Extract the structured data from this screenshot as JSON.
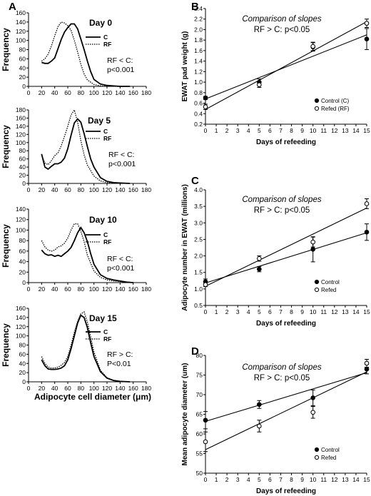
{
  "figure": {
    "x_axis_title_left": "Adipocyte cell diameter (μm)",
    "legend": {
      "c": "C",
      "rf": "RF"
    },
    "colors": {
      "line": "#000000",
      "background": "#ffffff"
    }
  },
  "chart_data": [
    {
      "panel": "A",
      "type": "line",
      "title": "Day 0",
      "ylabel": "Frequency",
      "xlim": [
        0,
        180
      ],
      "ylim": [
        0,
        160
      ],
      "xticks": [
        "0",
        "20",
        "40",
        "60",
        "80",
        "100",
        "120",
        "140",
        "160",
        "180"
      ],
      "yticks": [
        "0",
        "20",
        "40",
        "60",
        "80",
        "100",
        "120",
        "140",
        "160"
      ],
      "annotation": [
        "RF < C:",
        "p<0.001"
      ],
      "series": [
        {
          "name": "C",
          "style": "solid",
          "x": [
            20,
            25,
            30,
            35,
            40,
            45,
            50,
            55,
            60,
            65,
            70,
            75,
            80,
            85,
            90,
            95,
            100,
            110,
            120,
            130,
            140,
            155
          ],
          "y": [
            52,
            50,
            50,
            55,
            62,
            82,
            102,
            118,
            128,
            136,
            136,
            125,
            103,
            80,
            55,
            32,
            15,
            5,
            2,
            1,
            0,
            0
          ]
        },
        {
          "name": "RF",
          "style": "dotted",
          "x": [
            20,
            25,
            30,
            35,
            40,
            45,
            50,
            55,
            60,
            65,
            70,
            75,
            80,
            85,
            90,
            100,
            110,
            120,
            130,
            140,
            155
          ],
          "y": [
            55,
            60,
            70,
            88,
            110,
            130,
            140,
            138,
            132,
            122,
            100,
            75,
            48,
            27,
            14,
            4,
            1,
            0,
            0,
            0,
            0
          ]
        }
      ]
    },
    {
      "panel": "A2",
      "type": "line",
      "title": "Day 5",
      "ylabel": "Frequency",
      "xlim": [
        0,
        180
      ],
      "ylim": [
        0,
        180
      ],
      "xticks": [
        "0",
        "20",
        "40",
        "60",
        "80",
        "100",
        "120",
        "140",
        "160",
        "180"
      ],
      "yticks": [
        "0",
        "20",
        "40",
        "60",
        "80",
        "100",
        "120",
        "140",
        "160",
        "180"
      ],
      "annotation": [
        "RF < C:",
        "p<0.001"
      ],
      "series": [
        {
          "name": "C",
          "style": "solid",
          "x": [
            20,
            25,
            30,
            35,
            40,
            45,
            50,
            55,
            60,
            65,
            70,
            75,
            80,
            85,
            90,
            95,
            100,
            110,
            120,
            130,
            140,
            155
          ],
          "y": [
            72,
            40,
            35,
            42,
            48,
            48,
            52,
            62,
            85,
            118,
            148,
            158,
            150,
            122,
            90,
            60,
            40,
            14,
            5,
            2,
            1,
            0
          ]
        },
        {
          "name": "RF",
          "style": "dotted",
          "x": [
            20,
            25,
            30,
            35,
            40,
            45,
            50,
            55,
            60,
            65,
            70,
            75,
            80,
            85,
            90,
            100,
            110,
            120,
            130,
            140,
            155
          ],
          "y": [
            70,
            50,
            46,
            56,
            68,
            75,
            92,
            115,
            140,
            168,
            180,
            150,
            105,
            70,
            45,
            18,
            6,
            2,
            1,
            0,
            0
          ]
        }
      ]
    },
    {
      "panel": "A3",
      "type": "line",
      "title": "Day 10",
      "ylabel": "Frequency",
      "xlim": [
        0,
        180
      ],
      "ylim": [
        0,
        140
      ],
      "xticks": [
        "0",
        "20",
        "40",
        "60",
        "80",
        "100",
        "120",
        "140",
        "160",
        "180"
      ],
      "yticks": [
        "0",
        "20",
        "40",
        "60",
        "80",
        "100",
        "120",
        "140"
      ],
      "annotation": [
        "RF < C:",
        "p<0.001"
      ],
      "series": [
        {
          "name": "C",
          "style": "solid",
          "x": [
            20,
            25,
            30,
            35,
            40,
            45,
            50,
            55,
            60,
            65,
            70,
            75,
            80,
            85,
            90,
            95,
            100,
            110,
            120,
            130,
            140,
            150,
            160
          ],
          "y": [
            62,
            55,
            52,
            53,
            50,
            52,
            50,
            55,
            60,
            67,
            80,
            95,
            105,
            95,
            78,
            55,
            35,
            15,
            8,
            5,
            3,
            1,
            0
          ]
        },
        {
          "name": "RF",
          "style": "dotted",
          "x": [
            20,
            25,
            30,
            35,
            40,
            45,
            50,
            55,
            60,
            65,
            70,
            75,
            80,
            85,
            90,
            100,
            110,
            120,
            130,
            140,
            150,
            160
          ],
          "y": [
            80,
            68,
            62,
            60,
            62,
            68,
            70,
            75,
            85,
            100,
            112,
            112,
            98,
            78,
            52,
            22,
            10,
            5,
            3,
            2,
            1,
            0
          ]
        }
      ]
    },
    {
      "panel": "A4",
      "type": "line",
      "title": "Day 15",
      "ylabel": "Frequency",
      "xlim": [
        0,
        180
      ],
      "ylim": [
        0,
        160
      ],
      "xticks": [
        "0",
        "20",
        "40",
        "60",
        "80",
        "100",
        "120",
        "140",
        "160",
        "180"
      ],
      "yticks": [
        "0",
        "20",
        "40",
        "60",
        "80",
        "100",
        "120",
        "140",
        "160"
      ],
      "annotation": [
        "RF > C:",
        "P<0.01"
      ],
      "series": [
        {
          "name": "C",
          "style": "solid",
          "x": [
            20,
            25,
            30,
            35,
            40,
            45,
            50,
            55,
            60,
            65,
            70,
            75,
            80,
            85,
            90,
            95,
            100,
            110,
            120,
            130,
            140,
            155
          ],
          "y": [
            48,
            35,
            28,
            27,
            27,
            28,
            30,
            35,
            48,
            72,
            100,
            128,
            145,
            140,
            118,
            85,
            55,
            22,
            8,
            3,
            1,
            0
          ]
        },
        {
          "name": "RF",
          "style": "dotted",
          "x": [
            20,
            25,
            30,
            35,
            40,
            45,
            50,
            55,
            60,
            65,
            70,
            75,
            80,
            85,
            90,
            95,
            100,
            110,
            120,
            130,
            140,
            155
          ],
          "y": [
            55,
            40,
            32,
            30,
            30,
            32,
            36,
            42,
            55,
            80,
            108,
            132,
            148,
            152,
            130,
            98,
            65,
            25,
            9,
            3,
            1,
            0
          ]
        }
      ]
    },
    {
      "panel": "B",
      "type": "scatter",
      "comparison_title": "Comparison of slopes",
      "comparison_result": "RF > C:  p<0.05",
      "ylabel": "EWAT pad weight (g)",
      "xlabel": "Days of refeeding",
      "xlim": [
        0,
        15
      ],
      "ylim": [
        0.2,
        2.4
      ],
      "xticks": [
        "0",
        "1",
        "2",
        "3",
        "4",
        "5",
        "6",
        "7",
        "8",
        "9",
        "10",
        "11",
        "12",
        "13",
        "14",
        "15"
      ],
      "yticks": [
        "0.2",
        "0.4",
        "0.6",
        "0.8",
        "1.0",
        "1.2",
        "1.4",
        "1.6",
        "1.8",
        "2.0",
        "2.2",
        "2.4"
      ],
      "series": [
        {
          "name": "Control (C)",
          "marker": "filled",
          "x": [
            0,
            5,
            10,
            15
          ],
          "y": [
            0.7,
            1.0,
            1.67,
            1.82
          ],
          "err": [
            0.03,
            0.06,
            0.08,
            0.2
          ],
          "fit": [
            [
              0,
              0.68
            ],
            [
              15,
              1.9
            ]
          ]
        },
        {
          "name": "Refed (RF)",
          "marker": "open",
          "x": [
            0,
            5,
            10,
            15
          ],
          "y": [
            0.53,
            0.95,
            1.68,
            2.12
          ],
          "err": [
            0.05,
            0.05,
            0.08,
            0.08
          ],
          "fit": [
            [
              0,
              0.48
            ],
            [
              15,
              2.15
            ]
          ]
        }
      ]
    },
    {
      "panel": "C",
      "type": "scatter",
      "comparison_title": "Comparison of slopes",
      "comparison_result": "RF > C:  p<0.05",
      "ylabel": "Adipocyte number in EWAT (millions)",
      "xlabel": "Days of refeeding",
      "xlim": [
        0,
        15
      ],
      "ylim": [
        0.5,
        4.0
      ],
      "xticks": [
        "0",
        "1",
        "2",
        "3",
        "4",
        "5",
        "6",
        "7",
        "8",
        "9",
        "10",
        "11",
        "12",
        "13",
        "14",
        "15"
      ],
      "yticks": [
        "0.5",
        "1.0",
        "1.5",
        "2.0",
        "2.5",
        "3.0",
        "3.5",
        "4.0"
      ],
      "series": [
        {
          "name": "Control",
          "marker": "filled",
          "x": [
            0,
            5,
            10,
            15
          ],
          "y": [
            1.22,
            1.6,
            2.2,
            2.72
          ],
          "err": [
            0.08,
            0.08,
            0.38,
            0.25
          ],
          "fit": [
            [
              0,
              1.18
            ],
            [
              15,
              2.7
            ]
          ]
        },
        {
          "name": "Refed",
          "marker": "open",
          "x": [
            0,
            5,
            10,
            15
          ],
          "y": [
            1.13,
            1.92,
            2.42,
            3.58
          ],
          "err": [
            0.06,
            0.08,
            0.15,
            0.15
          ],
          "fit": [
            [
              0,
              1.08
            ],
            [
              15,
              3.45
            ]
          ]
        }
      ]
    },
    {
      "panel": "D",
      "type": "scatter",
      "comparison_title": "Comparison of slopes",
      "comparison_result": "RF > C:  p<0.05",
      "ylabel": "Mean adipocyte diameter (um)",
      "xlabel": "Days of refeeding",
      "xlim": [
        0,
        15
      ],
      "ylim": [
        50,
        80
      ],
      "xticks": [
        "0",
        "1",
        "2",
        "3",
        "4",
        "5",
        "6",
        "7",
        "8",
        "9",
        "10",
        "11",
        "12",
        "13",
        "14",
        "15"
      ],
      "yticks": [
        "50",
        "55",
        "60",
        "65",
        "70",
        "75",
        "80"
      ],
      "series": [
        {
          "name": "Control",
          "marker": "filled",
          "x": [
            0,
            5,
            10,
            15
          ],
          "y": [
            63.5,
            67.5,
            69.2,
            76.5
          ],
          "err": [
            2.2,
            1.0,
            2.0,
            1.2
          ],
          "fit": [
            [
              0,
              63.2
            ],
            [
              15,
              75.6
            ]
          ]
        },
        {
          "name": "Refed",
          "marker": "open",
          "x": [
            0,
            5,
            10,
            15
          ],
          "y": [
            58.0,
            62.0,
            65.5,
            78.0
          ],
          "err": [
            2.5,
            1.5,
            1.5,
            1.0
          ],
          "fit": [
            [
              0,
              56.0
            ],
            [
              15,
              75.8
            ]
          ]
        }
      ]
    }
  ]
}
